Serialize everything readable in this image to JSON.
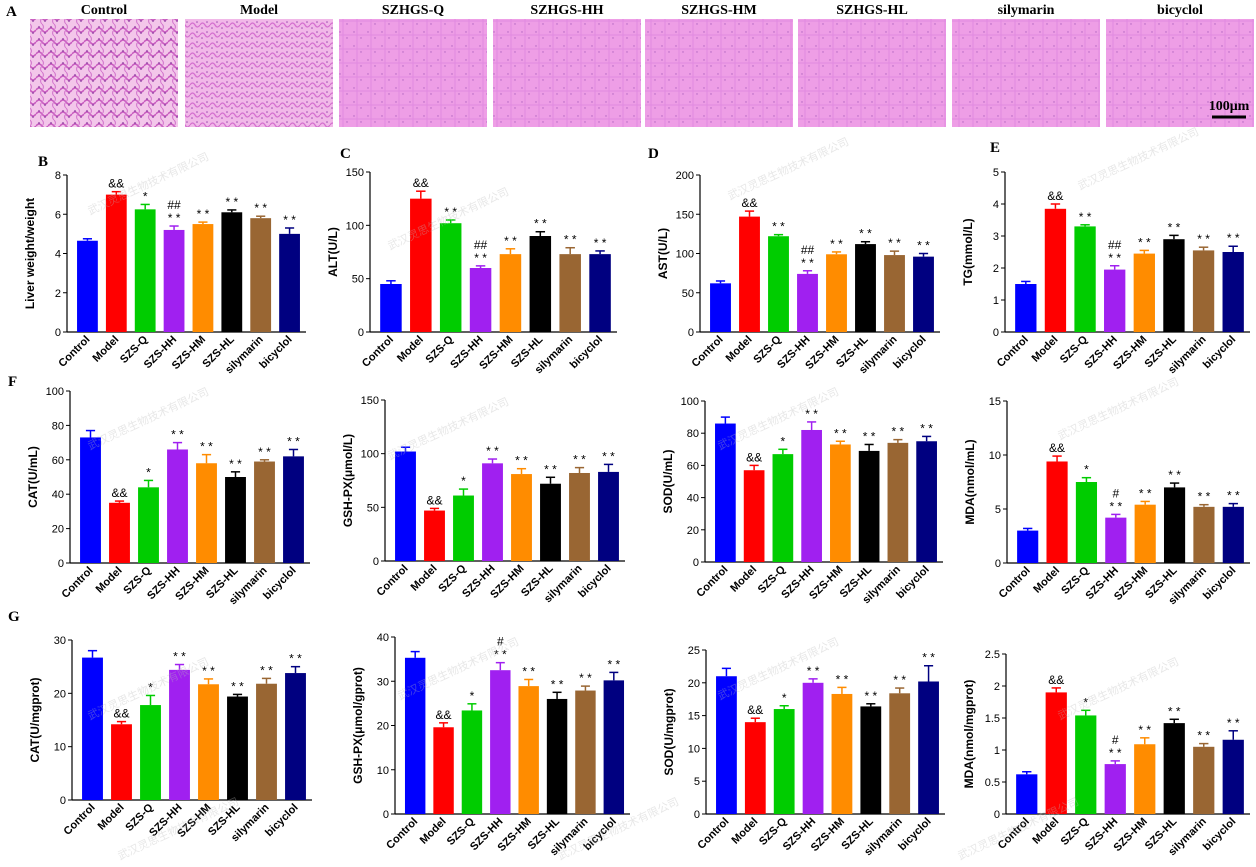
{
  "panel_a": {
    "letter": "A",
    "tiles": [
      "Control",
      "Model",
      "SZHGS-Q",
      "SZHGS-HH",
      "SZHGS-HM",
      "SZHGS-HL",
      "silymarin",
      "bicyclol"
    ],
    "scale_bar_label": "100μm"
  },
  "watermark_text": "武汉灵思生物技术有限公司",
  "colors": [
    "#0000ff",
    "#ff0000",
    "#00cc00",
    "#a020f0",
    "#ff8c00",
    "#000000",
    "#996633",
    "#000080"
  ],
  "chart_data": [
    {
      "id": "B",
      "type": "bar",
      "letter": "B",
      "ylabel": "Liver weight/weight",
      "ylim": [
        0,
        8
      ],
      "yticks": [
        0,
        2,
        4,
        6,
        8
      ],
      "categories": [
        "Control",
        "Model",
        "SZS-Q",
        "SZS-HH",
        "SZS-HM",
        "SZS-HL",
        "silymarin",
        "bicyclol"
      ],
      "values": [
        4.65,
        7.0,
        6.25,
        5.2,
        5.5,
        6.1,
        5.8,
        5.0
      ],
      "errors": [
        0.1,
        0.15,
        0.25,
        0.2,
        0.1,
        0.12,
        0.1,
        0.3
      ],
      "annotations": [
        "",
        "&&",
        "*",
        "##\n* *",
        "* *",
        "* *",
        "* *",
        "* *"
      ]
    },
    {
      "id": "C",
      "type": "bar",
      "letter": "C",
      "ylabel": "ALT(U/L)",
      "ylim": [
        0,
        150
      ],
      "yticks": [
        0,
        50,
        100,
        150
      ],
      "categories": [
        "Control",
        "Model",
        "SZS-Q",
        "SZS-HH",
        "SZS-HM",
        "SZS-HL",
        "silymarin",
        "bicyclol"
      ],
      "values": [
        45,
        125,
        102,
        60,
        73,
        90,
        73,
        73
      ],
      "errors": [
        3,
        7,
        3,
        2,
        5,
        4,
        6,
        3
      ],
      "annotations": [
        "",
        "&&",
        "* *",
        "##\n* *",
        "* *",
        "* *",
        "* *",
        "* *"
      ]
    },
    {
      "id": "D",
      "type": "bar",
      "letter": "D",
      "ylabel": "AST(U/L)",
      "ylim": [
        0,
        200
      ],
      "yticks": [
        0,
        50,
        100,
        150,
        200
      ],
      "categories": [
        "Control",
        "Model",
        "SZS-Q",
        "SZS-HH",
        "SZS-HM",
        "SZS-HL",
        "silymarin",
        "bicyclol"
      ],
      "values": [
        62,
        147,
        122,
        74,
        99,
        112,
        98,
        96
      ],
      "errors": [
        3,
        7,
        2,
        4,
        3,
        3,
        5,
        4
      ],
      "annotations": [
        "",
        "&&",
        "* *",
        "##\n* *",
        "* *",
        "* *",
        "* *",
        "* *"
      ]
    },
    {
      "id": "E",
      "type": "bar",
      "letter": "E",
      "ylabel": "TG(mmol/L)",
      "ylim": [
        0,
        5
      ],
      "yticks": [
        0,
        1,
        2,
        3,
        4,
        5
      ],
      "categories": [
        "Control",
        "Model",
        "SZS-Q",
        "SZS-HH",
        "SZS-HM",
        "SZS-HL",
        "silymarin",
        "bicyclol"
      ],
      "values": [
        1.5,
        3.85,
        3.3,
        1.95,
        2.45,
        2.9,
        2.55,
        2.5
      ],
      "errors": [
        0.08,
        0.15,
        0.05,
        0.12,
        0.1,
        0.12,
        0.1,
        0.18
      ],
      "annotations": [
        "",
        "&&",
        "* *",
        "##\n* *",
        "* *",
        "* *",
        "* *",
        "* *"
      ]
    },
    {
      "id": "F1",
      "type": "bar",
      "letter": "F",
      "ylabel": "CAT(U/mL)",
      "ylim": [
        0,
        100
      ],
      "yticks": [
        0,
        20,
        40,
        60,
        80,
        100
      ],
      "categories": [
        "Control",
        "Model",
        "SZS-Q",
        "SZS-HH",
        "SZS-HM",
        "SZS-HL",
        "silymarin",
        "bicyclol"
      ],
      "values": [
        73,
        35,
        44,
        66,
        58,
        50,
        59,
        62
      ],
      "errors": [
        4,
        1,
        4,
        4,
        5,
        3,
        1,
        4
      ],
      "annotations": [
        "",
        "&&",
        "*",
        "* *",
        "* *",
        "* *",
        "* *",
        "* *"
      ]
    },
    {
      "id": "F2",
      "type": "bar",
      "letter": "",
      "ylabel": "GSH-PX(μmol/L)",
      "ylim": [
        0,
        150
      ],
      "yticks": [
        0,
        50,
        100,
        150
      ],
      "categories": [
        "Control",
        "Model",
        "SZS-Q",
        "SZS-HH",
        "SZS-HM",
        "SZS-HL",
        "silymarin",
        "bicyclol"
      ],
      "values": [
        102,
        47,
        61,
        91,
        81,
        72,
        82,
        83
      ],
      "errors": [
        4,
        2,
        6,
        4,
        5,
        6,
        5,
        7
      ],
      "annotations": [
        "",
        "&&",
        "*",
        "* *",
        "* *",
        "* *",
        "* *",
        "* *"
      ]
    },
    {
      "id": "F3",
      "type": "bar",
      "letter": "",
      "ylabel": "SOD(U/mL)",
      "ylim": [
        0,
        100
      ],
      "yticks": [
        0,
        20,
        40,
        60,
        80,
        100
      ],
      "categories": [
        "Control",
        "Model",
        "SZS-Q",
        "SZS-HH",
        "SZS-HM",
        "SZS-HL",
        "silymarin",
        "bicyclol"
      ],
      "values": [
        86,
        57,
        67,
        82,
        73,
        69,
        74,
        75
      ],
      "errors": [
        4,
        3,
        3,
        5,
        2,
        4,
        2,
        3
      ],
      "annotations": [
        "",
        "&&",
        "*",
        "* *",
        "* *",
        "* *",
        "* *",
        "* *"
      ]
    },
    {
      "id": "F4",
      "type": "bar",
      "letter": "",
      "ylabel": "MDA(nmol/mL)",
      "ylim": [
        0,
        15
      ],
      "yticks": [
        0,
        5,
        10,
        15
      ],
      "categories": [
        "Control",
        "Model",
        "SZS-Q",
        "SZS-HH",
        "SZS-HM",
        "SZS-HL",
        "silymarin",
        "bicyclol"
      ],
      "values": [
        3.0,
        9.4,
        7.5,
        4.2,
        5.4,
        7.0,
        5.2,
        5.2
      ],
      "errors": [
        0.2,
        0.5,
        0.4,
        0.3,
        0.3,
        0.4,
        0.2,
        0.3
      ],
      "annotations": [
        "",
        "&&",
        "*",
        "#\n* *",
        "* *",
        "* *",
        "* *",
        "* *"
      ]
    },
    {
      "id": "G1",
      "type": "bar",
      "letter": "G",
      "ylabel": "CAT(U/mgprot)",
      "ylim": [
        0,
        30
      ],
      "yticks": [
        0,
        10,
        20,
        30
      ],
      "categories": [
        "Control",
        "Model",
        "SZS-Q",
        "SZS-HH",
        "SZS-HM",
        "SZS-HL",
        "silymarin",
        "bicyclol"
      ],
      "values": [
        26.7,
        14.2,
        17.8,
        24.4,
        21.7,
        19.4,
        21.8,
        23.8
      ],
      "errors": [
        1.3,
        0.5,
        1.8,
        1.0,
        1.0,
        0.4,
        1.0,
        1.2
      ],
      "annotations": [
        "",
        "&&",
        "*",
        "* *",
        "* *",
        "* *",
        "* *",
        "* *"
      ]
    },
    {
      "id": "G2",
      "type": "bar",
      "letter": "",
      "ylabel": "GSH-PX(μmol/gprot)",
      "ylim": [
        0,
        40
      ],
      "yticks": [
        0,
        10,
        20,
        30,
        40
      ],
      "categories": [
        "Control",
        "Model",
        "SZS-Q",
        "SZS-HH",
        "SZS-HM",
        "SZS-HL",
        "silymarin",
        "bicyclol"
      ],
      "values": [
        35.3,
        19.6,
        23.4,
        32.5,
        28.9,
        26.0,
        27.9,
        30.2
      ],
      "errors": [
        1.4,
        1.0,
        1.5,
        1.7,
        1.5,
        1.5,
        1.0,
        1.8
      ],
      "annotations": [
        "",
        "&&",
        "*",
        "#\n* *",
        "* *",
        "* *",
        "* *",
        "* *"
      ]
    },
    {
      "id": "G3",
      "type": "bar",
      "letter": "",
      "ylabel": "SOD(U/mgprot)",
      "ylim": [
        0,
        25
      ],
      "yticks": [
        0,
        5,
        10,
        15,
        20,
        25
      ],
      "categories": [
        "Control",
        "Model",
        "SZS-Q",
        "SZS-HH",
        "SZS-HM",
        "SZS-HL",
        "silymarin",
        "bicyclol"
      ],
      "values": [
        21.0,
        14.0,
        16.0,
        20.0,
        18.3,
        16.4,
        18.4,
        20.2
      ],
      "errors": [
        1.2,
        0.6,
        0.5,
        0.6,
        1.0,
        0.4,
        0.8,
        2.4
      ],
      "annotations": [
        "",
        "&&",
        "*",
        "* *",
        "* *",
        "* *",
        "* *",
        "* *"
      ]
    },
    {
      "id": "G4",
      "type": "bar",
      "letter": "",
      "ylabel": "MDA(nmol/mgprot)",
      "ylim": [
        0,
        2.5
      ],
      "yticks": [
        0.0,
        0.5,
        1.0,
        1.5,
        2.0,
        2.5
      ],
      "categories": [
        "Control",
        "Model",
        "SZS-Q",
        "SZS-HH",
        "SZS-HM",
        "SZS-HL",
        "silymarin",
        "bicyclol"
      ],
      "values": [
        0.62,
        1.9,
        1.54,
        0.78,
        1.09,
        1.42,
        1.05,
        1.16
      ],
      "errors": [
        0.04,
        0.07,
        0.08,
        0.05,
        0.1,
        0.06,
        0.05,
        0.14
      ],
      "annotations": [
        "",
        "&&",
        "*",
        "#\n* *",
        "* *",
        "* *",
        "* *",
        "* *"
      ]
    }
  ]
}
